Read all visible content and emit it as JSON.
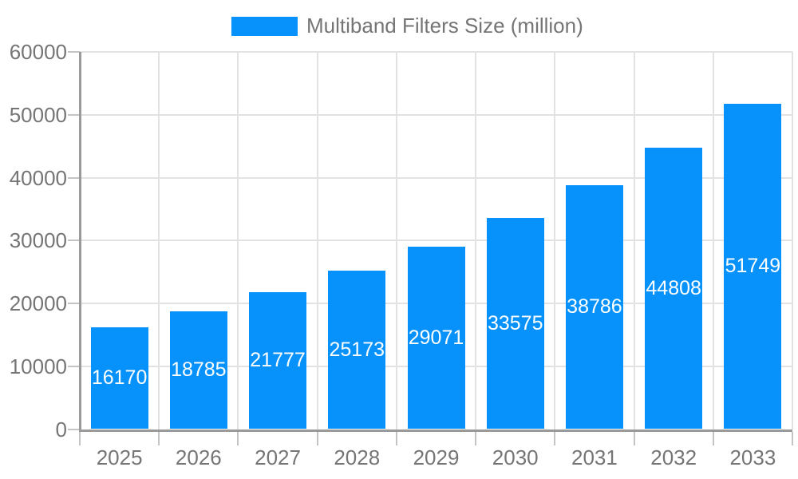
{
  "legend": {
    "label": "Multiband Filters Size (million)"
  },
  "colors": {
    "bar": "#0791fa",
    "text_gray": "#757575",
    "bar_label": "#ffffff",
    "axis": "#9a9a9a",
    "tick": "#c4c4c4",
    "grid": "#e2e2e2",
    "background": "#ffffff"
  },
  "chart_data": {
    "type": "bar",
    "title": "Multiband Filters Size (million)",
    "series_name": "Multiband Filters Size (million)",
    "categories": [
      "2025",
      "2026",
      "2027",
      "2028",
      "2029",
      "2030",
      "2031",
      "2032",
      "2033"
    ],
    "values": [
      16170,
      18785,
      21777,
      25173,
      29071,
      33575,
      38786,
      44808,
      51749
    ],
    "xlabel": "",
    "ylabel": "",
    "ylim": [
      0,
      60000
    ],
    "y_ticks": [
      0,
      10000,
      20000,
      30000,
      40000,
      50000,
      60000
    ],
    "grid": true,
    "legend_position": "top",
    "bar_value_labels": "centered-white-inside-bars"
  }
}
